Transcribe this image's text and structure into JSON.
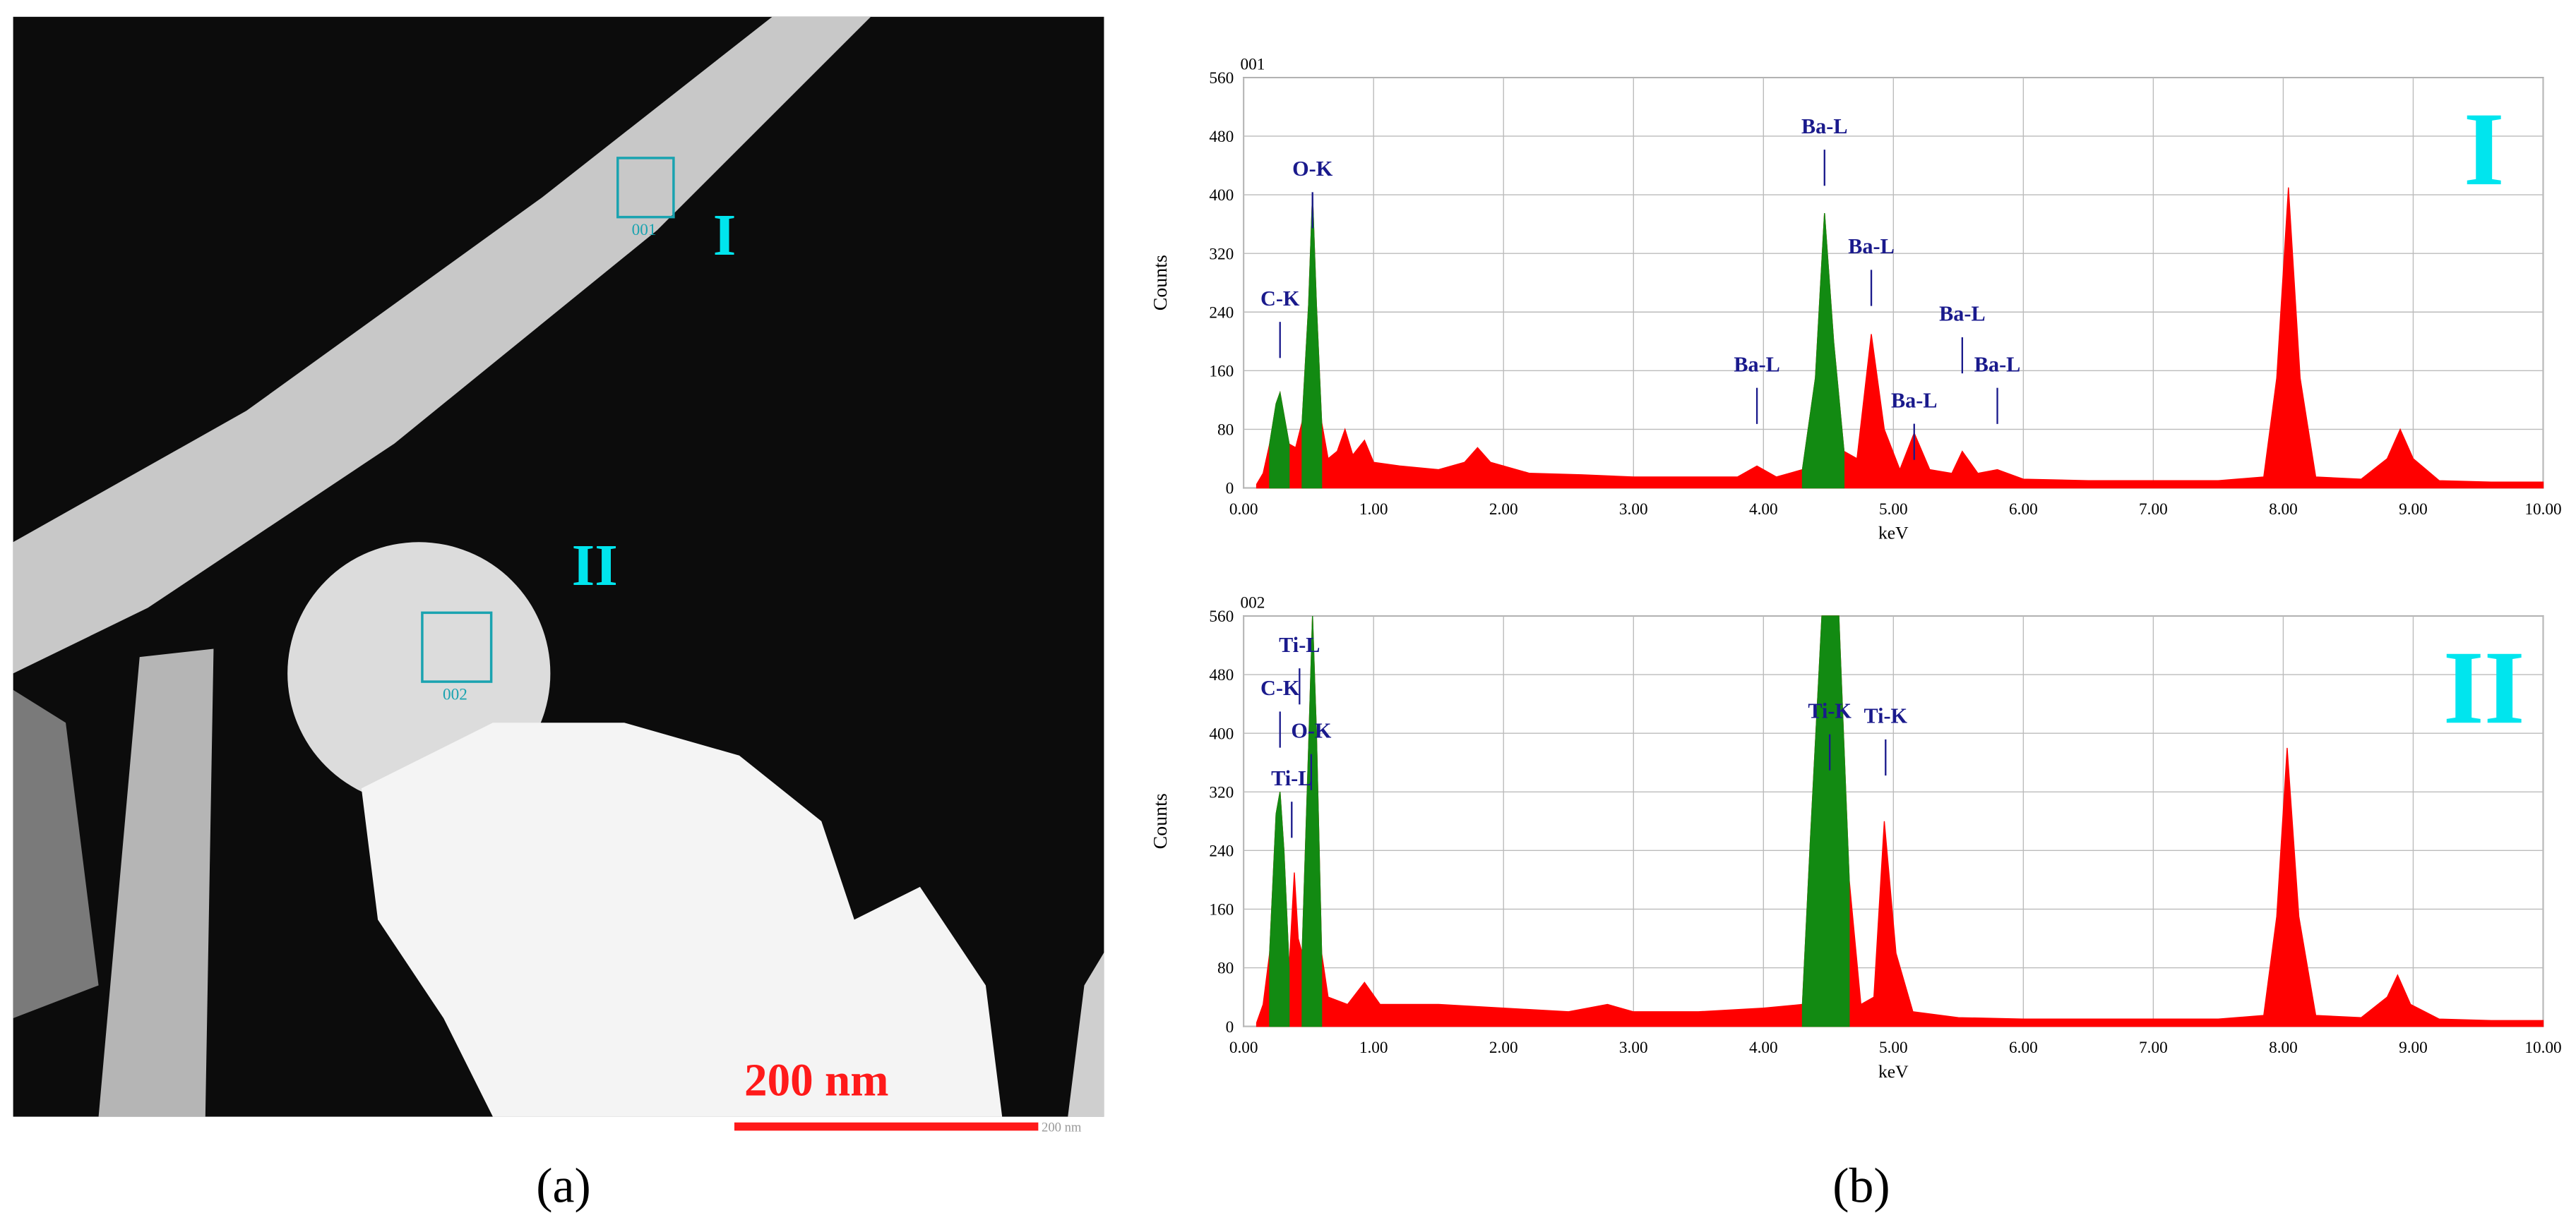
{
  "image_panel": {
    "box_labels": [
      "001",
      "002"
    ],
    "region_labels": [
      "I",
      "II"
    ],
    "scale_bar": "200 nm",
    "scale_bar_small": "200 nm"
  },
  "panel_labels": [
    "(a)",
    "(b)"
  ],
  "chart_data": [
    {
      "type": "area",
      "title": "001",
      "corner_label": "I",
      "xlabel": "keV",
      "ylabel": "Counts",
      "xlim": [
        0,
        10
      ],
      "ylim": [
        0,
        560
      ],
      "grid": true,
      "xticks": [
        {
          "value": 0,
          "label": "0.00"
        },
        {
          "value": 1,
          "label": "1.00"
        },
        {
          "value": 2,
          "label": "2.00"
        },
        {
          "value": 3,
          "label": "3.00"
        },
        {
          "value": 4,
          "label": "4.00"
        },
        {
          "value": 5,
          "label": "5.00"
        },
        {
          "value": 6,
          "label": "6.00"
        },
        {
          "value": 7,
          "label": "7.00"
        },
        {
          "value": 8,
          "label": "8.00"
        },
        {
          "value": 9,
          "label": "9.00"
        },
        {
          "value": 10,
          "label": "10.00"
        }
      ],
      "yticks": [
        0,
        80,
        160,
        240,
        320,
        400,
        480,
        560
      ],
      "x": [
        0.1,
        0.15,
        0.2,
        0.25,
        0.28,
        0.31,
        0.35,
        0.4,
        0.45,
        0.5,
        0.53,
        0.56,
        0.6,
        0.65,
        0.72,
        0.78,
        0.84,
        0.93,
        1.0,
        1.2,
        1.5,
        1.7,
        1.8,
        1.9,
        2.2,
        2.6,
        3.0,
        3.4,
        3.8,
        3.95,
        4.1,
        4.3,
        4.4,
        4.47,
        4.54,
        4.62,
        4.72,
        4.83,
        4.93,
        5.05,
        5.16,
        5.28,
        5.45,
        5.53,
        5.65,
        5.8,
        6.0,
        6.5,
        7.0,
        7.5,
        7.85,
        7.95,
        8.04,
        8.13,
        8.25,
        8.6,
        8.8,
        8.9,
        9.0,
        9.2,
        9.6,
        10.0
      ],
      "series": [
        {
          "color": "#ff0000",
          "values": [
            5,
            20,
            60,
            115,
            130,
            100,
            60,
            55,
            90,
            250,
            400,
            250,
            90,
            40,
            50,
            80,
            45,
            65,
            35,
            30,
            25,
            35,
            55,
            35,
            20,
            18,
            15,
            15,
            15,
            30,
            15,
            25,
            150,
            375,
            200,
            50,
            40,
            210,
            80,
            25,
            75,
            25,
            20,
            50,
            20,
            25,
            12,
            10,
            10,
            10,
            15,
            150,
            410,
            150,
            15,
            12,
            40,
            80,
            40,
            10,
            8,
            8
          ]
        },
        {
          "color": "#128a12",
          "values": [
            null,
            null,
            60,
            115,
            130,
            100,
            60,
            null,
            90,
            250,
            400,
            250,
            90,
            null,
            null,
            null,
            null,
            null,
            null,
            null,
            null,
            null,
            null,
            null,
            null,
            null,
            null,
            null,
            null,
            null,
            null,
            25,
            150,
            375,
            200,
            50,
            null,
            null,
            null,
            null,
            null,
            null,
            null,
            null,
            null,
            null,
            null,
            null,
            null,
            null,
            null,
            null,
            null,
            null,
            null,
            null,
            null,
            null,
            null,
            null,
            null,
            null
          ]
        }
      ],
      "annotations": [
        {
          "text": "O-K",
          "x": 0.53,
          "y": 426
        },
        {
          "text": "C-K",
          "x": 0.28,
          "y": 249
        },
        {
          "text": "Ba-L",
          "x": 4.47,
          "y": 484
        },
        {
          "text": "Ba-L",
          "x": 4.83,
          "y": 320
        },
        {
          "text": "Ba-L",
          "x": 5.16,
          "y": 110
        },
        {
          "text": "Ba-L",
          "x": 5.53,
          "y": 228
        },
        {
          "text": "Ba-L",
          "x": 5.8,
          "y": 159
        },
        {
          "text": "Ba-L",
          "x": 3.95,
          "y": 159
        }
      ]
    },
    {
      "type": "area",
      "title": "002",
      "corner_label": "II",
      "xlabel": "keV",
      "ylabel": "Counts",
      "xlim": [
        0,
        10
      ],
      "ylim": [
        0,
        560
      ],
      "grid": true,
      "xticks": [
        {
          "value": 0,
          "label": "0.00"
        },
        {
          "value": 1,
          "label": "1.00"
        },
        {
          "value": 2,
          "label": "2.00"
        },
        {
          "value": 3,
          "label": "3.00"
        },
        {
          "value": 4,
          "label": "4.00"
        },
        {
          "value": 5,
          "label": "5.00"
        },
        {
          "value": 6,
          "label": "6.00"
        },
        {
          "value": 7,
          "label": "7.00"
        },
        {
          "value": 8,
          "label": "8.00"
        },
        {
          "value": 9,
          "label": "9.00"
        },
        {
          "value": 10,
          "label": "10.00"
        }
      ],
      "yticks": [
        0,
        80,
        160,
        240,
        320,
        400,
        480,
        560
      ],
      "x": [
        0.1,
        0.15,
        0.2,
        0.25,
        0.28,
        0.31,
        0.35,
        0.39,
        0.42,
        0.45,
        0.5,
        0.53,
        0.56,
        0.6,
        0.65,
        0.8,
        0.93,
        1.05,
        1.5,
        2.0,
        2.5,
        2.8,
        3.0,
        3.5,
        4.0,
        4.3,
        4.36,
        4.45,
        4.51,
        4.58,
        4.66,
        4.75,
        4.85,
        4.93,
        5.02,
        5.15,
        5.5,
        6.0,
        6.5,
        7.0,
        7.5,
        7.85,
        7.95,
        8.03,
        8.12,
        8.25,
        8.6,
        8.8,
        8.88,
        8.98,
        9.2,
        9.6,
        10.0
      ],
      "series": [
        {
          "color": "#ff0000",
          "values": [
            5,
            30,
            100,
            290,
            320,
            240,
            80,
            210,
            120,
            100,
            380,
            560,
            400,
            100,
            40,
            30,
            60,
            30,
            30,
            25,
            20,
            30,
            20,
            20,
            25,
            30,
            250,
            560,
            560,
            560,
            200,
            30,
            40,
            280,
            100,
            20,
            12,
            10,
            10,
            10,
            10,
            15,
            150,
            380,
            150,
            15,
            12,
            40,
            70,
            30,
            10,
            8,
            8
          ]
        },
        {
          "color": "#128a12",
          "values": [
            null,
            null,
            100,
            290,
            320,
            240,
            80,
            null,
            null,
            100,
            380,
            560,
            400,
            100,
            null,
            null,
            null,
            null,
            null,
            null,
            null,
            null,
            null,
            null,
            null,
            30,
            250,
            560,
            560,
            560,
            200,
            null,
            null,
            null,
            null,
            null,
            null,
            null,
            null,
            null,
            null,
            null,
            null,
            null,
            null,
            null,
            null,
            null,
            null,
            null,
            null,
            null,
            null
          ]
        }
      ],
      "annotations": [
        {
          "text": "Ti-L",
          "x": 0.43,
          "y": 511
        },
        {
          "text": "C-K",
          "x": 0.28,
          "y": 452
        },
        {
          "text": "O-K",
          "x": 0.52,
          "y": 394
        },
        {
          "text": "Ti-L",
          "x": 0.37,
          "y": 329
        },
        {
          "text": "Ti-K",
          "x": 4.51,
          "y": 421
        },
        {
          "text": "Ti-K",
          "x": 4.94,
          "y": 414
        }
      ]
    }
  ]
}
